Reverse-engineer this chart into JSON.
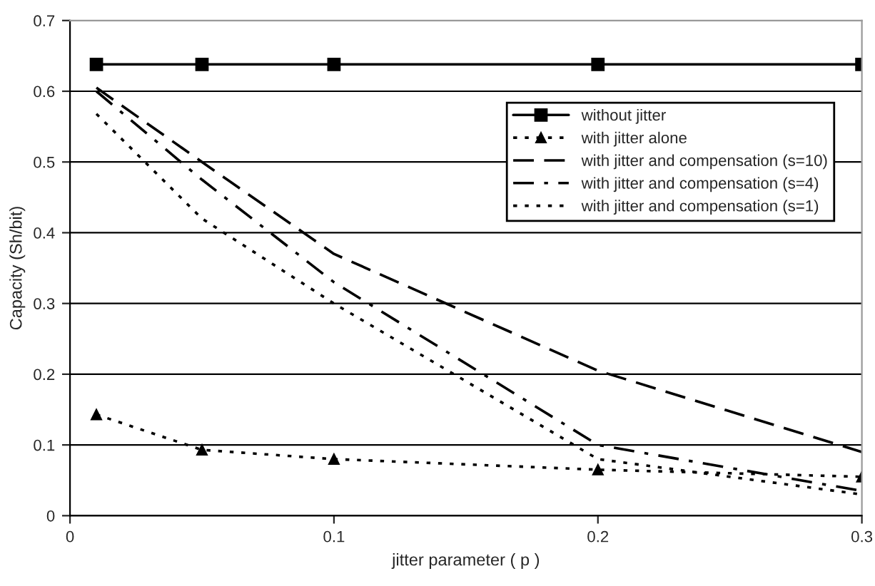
{
  "chart_data": {
    "type": "line",
    "xlabel": "jitter parameter ( p )",
    "ylabel": "Capacity (Sh/bit)",
    "x": [
      0.01,
      0.05,
      0.1,
      0.2,
      0.3
    ],
    "series": [
      {
        "name": "without jitter",
        "color": "#000000",
        "values": [
          0.638,
          0.638,
          0.638,
          0.638,
          0.638
        ],
        "marker": "square",
        "line_style": "solid"
      },
      {
        "name": "with jitter alone",
        "color": "#000000",
        "values": [
          0.143,
          0.093,
          0.08,
          0.065,
          0.055
        ],
        "marker": "triangle",
        "line_style": "dotted"
      },
      {
        "name": "with jitter and compensation (s=10)",
        "color": "#000000",
        "values": [
          0.605,
          0.5,
          0.37,
          0.205,
          0.09
        ],
        "marker": "none",
        "line_style": "dashed"
      },
      {
        "name": "with jitter and compensation (s=4)",
        "color": "#000000",
        "values": [
          0.6,
          0.475,
          0.33,
          0.1,
          0.035
        ],
        "marker": "none",
        "line_style": "dashdot"
      },
      {
        "name": "with jitter and compensation (s=1)",
        "color": "#000000",
        "values": [
          0.568,
          0.42,
          0.3,
          0.08,
          0.03
        ],
        "marker": "none",
        "line_style": "dotted"
      }
    ],
    "xlim": [
      0,
      0.3
    ],
    "xticks": [
      0,
      0.1,
      0.2,
      0.3
    ],
    "ylim": [
      0,
      0.7
    ],
    "yticks": [
      0,
      0.1,
      0.2,
      0.3,
      0.4,
      0.5,
      0.6,
      0.7
    ],
    "grid": "y",
    "legend": "top right"
  }
}
